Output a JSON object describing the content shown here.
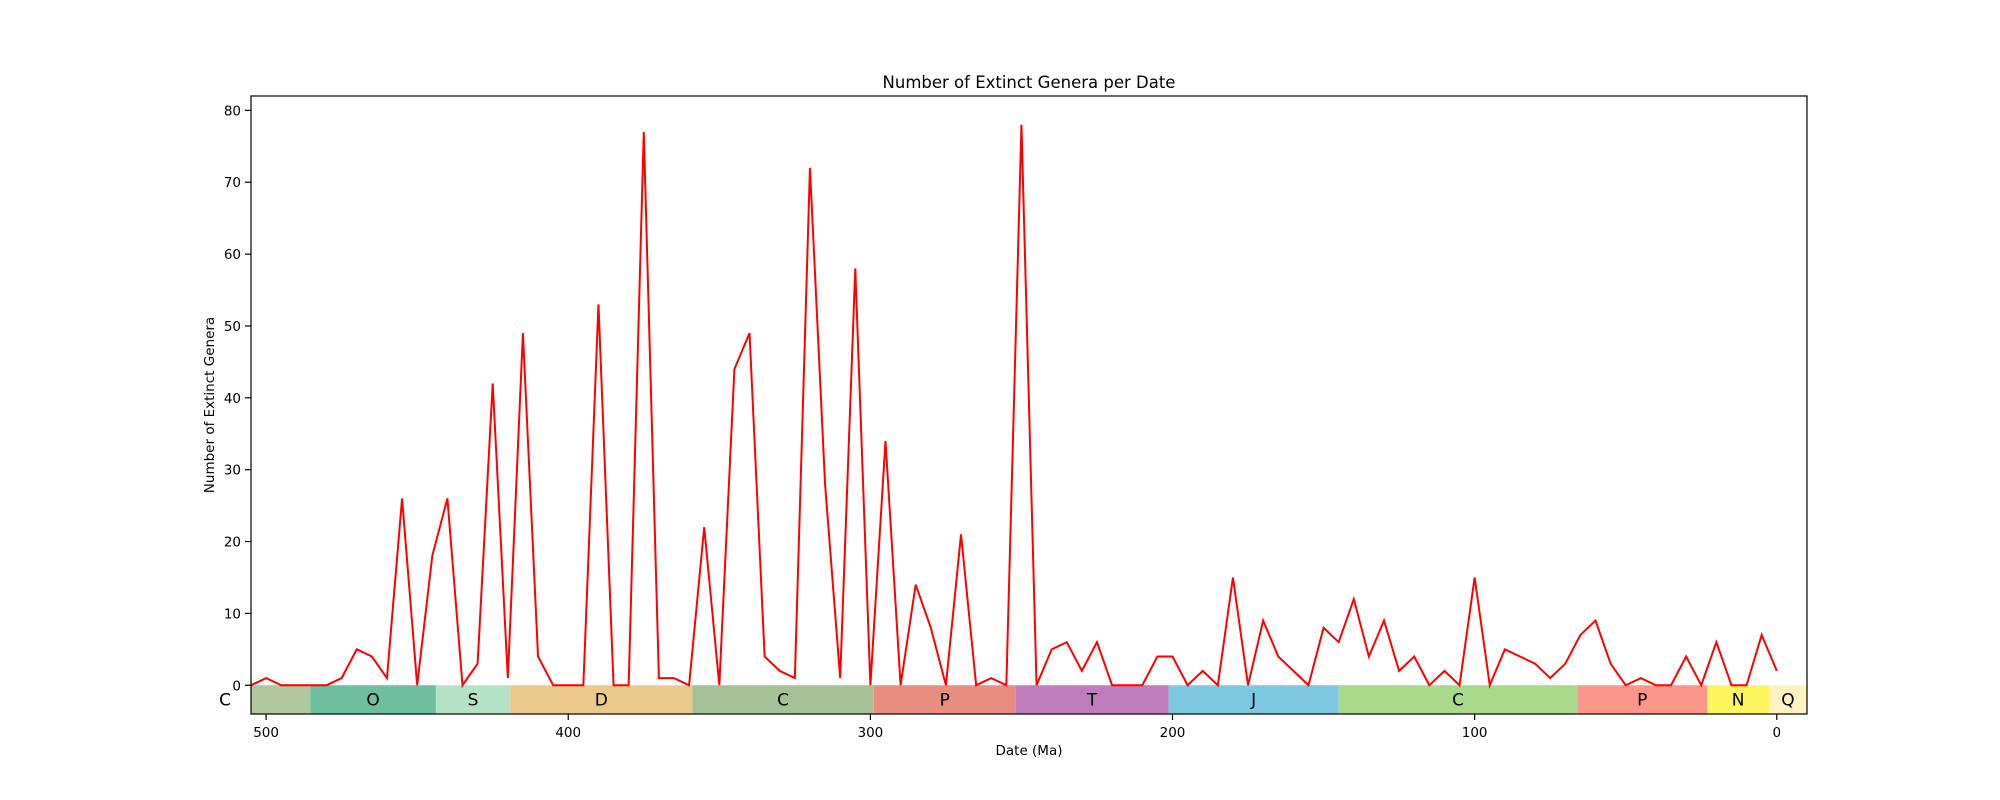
{
  "chart_data": {
    "type": "line",
    "title": "Number of Extinct Genera per Date",
    "xlabel": "Date (Ma)",
    "ylabel": "Number of Extinct Genera",
    "xlim": [
      505,
      -10
    ],
    "ylim": [
      -4,
      82
    ],
    "x_ticks": [
      500,
      400,
      300,
      200,
      100,
      0
    ],
    "y_ticks": [
      0,
      10,
      20,
      30,
      40,
      50,
      60,
      70,
      80
    ],
    "grid": false,
    "line_color": "#ff0000",
    "series": [
      {
        "x": [
          505,
          500,
          495,
          490,
          485,
          480,
          475,
          470,
          465,
          460,
          455,
          450,
          445,
          440,
          435,
          430,
          425,
          420,
          415,
          410,
          405,
          400,
          395,
          390,
          385,
          380,
          375,
          370,
          365,
          360,
          355,
          350,
          345,
          340,
          335,
          330,
          325,
          320,
          315,
          310,
          305,
          300,
          295,
          290,
          285,
          280,
          275,
          270,
          265,
          260,
          255,
          250,
          245,
          240,
          235,
          230,
          225,
          220,
          215,
          210,
          205,
          200,
          195,
          190,
          185,
          180,
          175,
          170,
          165,
          160,
          155,
          150,
          145,
          140,
          135,
          130,
          125,
          120,
          115,
          110,
          105,
          100,
          95,
          90,
          85,
          80,
          75,
          70,
          65,
          60,
          55,
          50,
          45,
          40,
          35,
          30,
          25,
          20,
          15,
          10,
          5,
          0
        ],
        "y": [
          0,
          1,
          0,
          0,
          0,
          0,
          1,
          5,
          4,
          1,
          26,
          0,
          18,
          26,
          0,
          3,
          42,
          1,
          49,
          4,
          0,
          0,
          0,
          53,
          0,
          0,
          77,
          1,
          1,
          0,
          22,
          0,
          44,
          49,
          4,
          2,
          1,
          72,
          28,
          1,
          58,
          0,
          34,
          0,
          14,
          8,
          0,
          21,
          0,
          1,
          0,
          78,
          0,
          5,
          6,
          2,
          6,
          0,
          0,
          0,
          4,
          4,
          0,
          2,
          0,
          15,
          0,
          9,
          4,
          2,
          0,
          8,
          6,
          12,
          4,
          9,
          2,
          4,
          0,
          2,
          0,
          15,
          0,
          5,
          4,
          3,
          1,
          3,
          7,
          9,
          3,
          0,
          1,
          0,
          0,
          4,
          0,
          6,
          0,
          0,
          7,
          2
        ]
      }
    ],
    "periods": [
      {
        "label": "C",
        "start": 541,
        "end": 485.4,
        "color": "#b0c69c"
      },
      {
        "label": "O",
        "start": 485.4,
        "end": 443.8,
        "color": "#6dbfa0"
      },
      {
        "label": "S",
        "start": 443.8,
        "end": 419.2,
        "color": "#b5e2c7"
      },
      {
        "label": "D",
        "start": 419.2,
        "end": 358.9,
        "color": "#e9ca8c"
      },
      {
        "label": "C",
        "start": 358.9,
        "end": 298.9,
        "color": "#a6c197"
      },
      {
        "label": "P",
        "start": 298.9,
        "end": 251.9,
        "color": "#e88e81"
      },
      {
        "label": "T",
        "start": 251.9,
        "end": 201.3,
        "color": "#c07dbd"
      },
      {
        "label": "J",
        "start": 201.3,
        "end": 145,
        "color": "#7ec7e1"
      },
      {
        "label": "C",
        "start": 145,
        "end": 66,
        "color": "#a9d98a"
      },
      {
        "label": "P",
        "start": 66,
        "end": 23.03,
        "color": "#fb968a"
      },
      {
        "label": "N",
        "start": 23.03,
        "end": 2.58,
        "color": "#fdf55e"
      },
      {
        "label": "Q",
        "start": 2.58,
        "end": -10,
        "color": "#fdf2c0"
      }
    ]
  }
}
